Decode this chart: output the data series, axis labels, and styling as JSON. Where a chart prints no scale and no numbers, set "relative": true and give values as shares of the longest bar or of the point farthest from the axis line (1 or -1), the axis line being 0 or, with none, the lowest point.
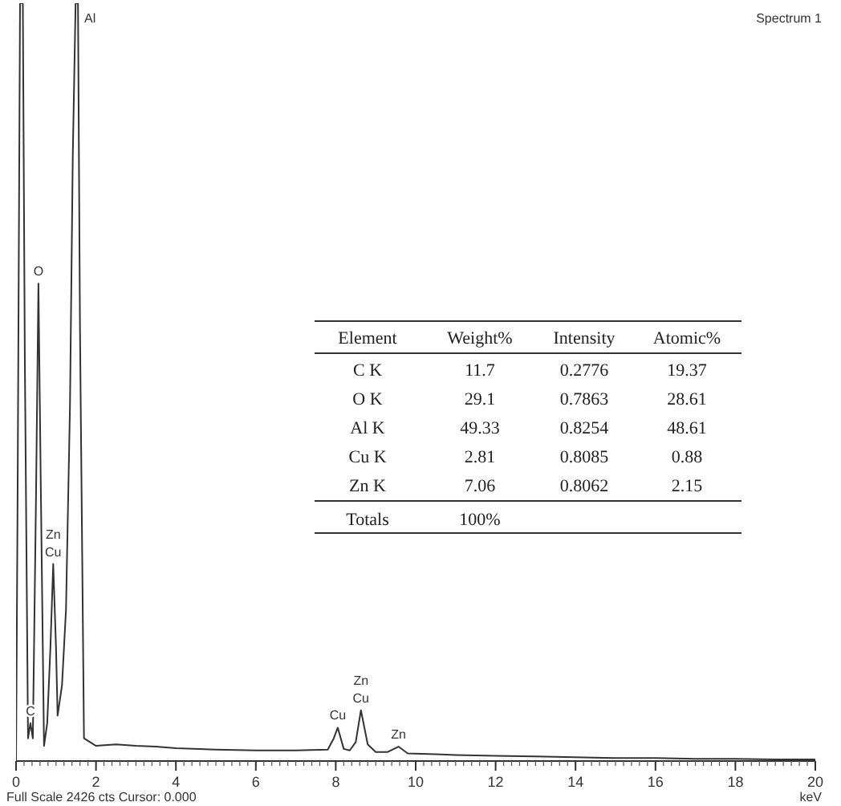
{
  "chart_data": [
    {
      "type": "line",
      "title": "Spectrum 1",
      "xlabel": "keV",
      "relative": true,
      "xlim": [
        0,
        20
      ],
      "xticks": [
        0,
        2,
        4,
        6,
        8,
        10,
        12,
        14,
        16,
        18,
        20
      ],
      "tick_labels": "x",
      "grid": false,
      "marker": "none",
      "line_style": "solid",
      "series": [
        {
          "color": "#333333",
          "x": [
            0,
            0.04,
            0.1,
            0.17,
            0.22,
            0.3,
            0.36,
            0.42,
            0.5,
            0.56,
            0.62,
            0.7,
            0.78,
            0.86,
            0.93,
            1.0,
            1.04,
            1.15,
            1.25,
            1.35,
            1.42,
            1.49,
            1.55,
            1.6,
            1.7,
            2,
            2.5,
            3,
            3.5,
            4,
            5,
            6,
            7,
            7.8,
            7.95,
            8.05,
            8.2,
            8.35,
            8.5,
            8.63,
            8.8,
            9.0,
            9.3,
            9.57,
            9.8,
            10.5,
            11,
            12,
            13,
            14,
            15,
            16,
            17,
            18,
            19,
            20
          ],
          "values": [
            0,
            0.36,
            1,
            1,
            0.53,
            0.03,
            0.05,
            0.03,
            0.35,
            0.63,
            0.36,
            0.02,
            0.05,
            0.15,
            0.26,
            0.15,
            0.06,
            0.1,
            0.2,
            0.47,
            0.8,
            1,
            1,
            0.57,
            0.03,
            0.02,
            0.022,
            0.02,
            0.019,
            0.017,
            0.015,
            0.014,
            0.014,
            0.015,
            0.03,
            0.044,
            0.016,
            0.014,
            0.025,
            0.067,
            0.022,
            0.012,
            0.012,
            0.019,
            0.01,
            0.009,
            0.008,
            0.007,
            0.006,
            0.005,
            0.004,
            0.004,
            0.003,
            0.003,
            0.002,
            0.002
          ]
        }
      ],
      "annotations": [
        {
          "text": "C",
          "x": 0.36,
          "y": 0.05
        },
        {
          "text": "O",
          "x": 0.56,
          "y": 0.63
        },
        {
          "text": "Zn",
          "x": 0.93,
          "y": 0.26
        },
        {
          "text": "Cu",
          "x": 0.93,
          "y": 0.26
        },
        {
          "text": "Al",
          "x": 1.49,
          "y": 1
        },
        {
          "text": "Cu",
          "x": 8.05,
          "y": 0.044
        },
        {
          "text": "Zn",
          "x": 8.63,
          "y": 0.067
        },
        {
          "text": "Cu",
          "x": 8.63,
          "y": 0.067
        },
        {
          "text": "Zn",
          "x": 9.57,
          "y": 0.019
        },
        "Full Scale 2426 cts Cursor: 0.000"
      ]
    },
    {
      "type": "other",
      "ylabel": "Element",
      "categories": [
        "Weight%",
        "Intensity",
        "Atomic%"
      ],
      "y_categories": [
        "C K",
        "O K",
        "Al K",
        "Cu K",
        "Zn K",
        "Totals"
      ],
      "cell_labels": [
        [
          "11.7",
          "0.2776",
          "19.37"
        ],
        [
          "29.1",
          "0.7863",
          "28.61"
        ],
        [
          "49.33",
          "0.8254",
          "48.61"
        ],
        [
          "2.81",
          "0.8085",
          "0.88"
        ],
        [
          "7.06",
          "0.8062",
          "2.15"
        ],
        [
          "100%",
          null,
          null
        ]
      ]
    }
  ]
}
